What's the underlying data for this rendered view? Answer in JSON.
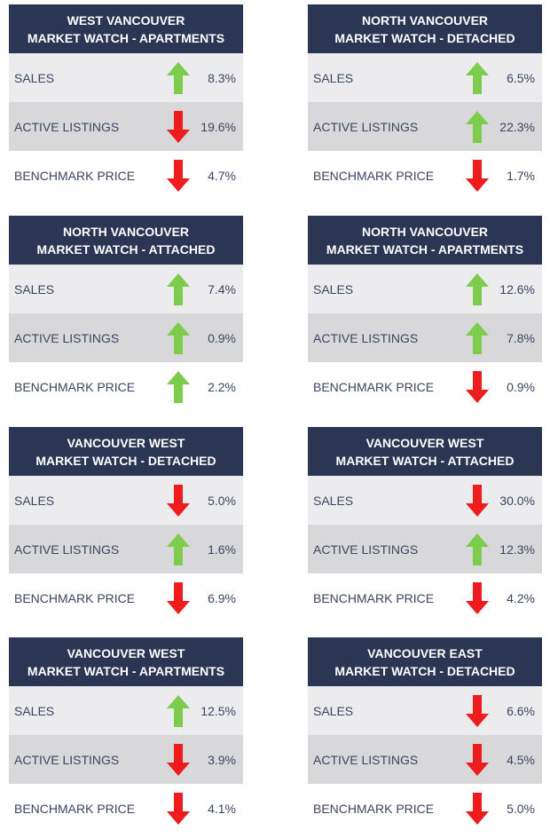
{
  "cards": [
    {
      "line1": "WEST VANCOUVER",
      "line2": "MARKET WATCH - APARTMENTS",
      "rows": [
        {
          "label": "SALES",
          "direction": "up",
          "value": "8.3%"
        },
        {
          "label": "ACTIVE LISTINGS",
          "direction": "down",
          "value": "19.6%"
        },
        {
          "label": "BENCHMARK PRICE",
          "direction": "down",
          "value": "4.7%"
        }
      ]
    },
    {
      "line1": "NORTH VANCOUVER",
      "line2": "MARKET WATCH - DETACHED",
      "rows": [
        {
          "label": "SALES",
          "direction": "up",
          "value": "6.5%"
        },
        {
          "label": "ACTIVE LISTINGS",
          "direction": "up",
          "value": "22.3%"
        },
        {
          "label": "BENCHMARK PRICE",
          "direction": "down",
          "value": "1.7%"
        }
      ]
    },
    {
      "line1": "NORTH VANCOUVER",
      "line2": "MARKET WATCH - ATTACHED",
      "rows": [
        {
          "label": "SALES",
          "direction": "up",
          "value": "7.4%"
        },
        {
          "label": "ACTIVE LISTINGS",
          "direction": "up",
          "value": "0.9%"
        },
        {
          "label": "BENCHMARK PRICE",
          "direction": "up",
          "value": "2.2%"
        }
      ]
    },
    {
      "line1": "NORTH VANCOUVER",
      "line2": "MARKET WATCH - APARTMENTS",
      "rows": [
        {
          "label": "SALES",
          "direction": "up",
          "value": "12.6%"
        },
        {
          "label": "ACTIVE LISTINGS",
          "direction": "up",
          "value": "7.8%"
        },
        {
          "label": "BENCHMARK PRICE",
          "direction": "down",
          "value": "0.9%"
        }
      ]
    },
    {
      "line1": "VANCOUVER WEST",
      "line2": "MARKET WATCH - DETACHED",
      "rows": [
        {
          "label": "SALES",
          "direction": "down",
          "value": "5.0%"
        },
        {
          "label": "ACTIVE LISTINGS",
          "direction": "up",
          "value": "1.6%"
        },
        {
          "label": "BENCHMARK PRICE",
          "direction": "down",
          "value": "6.9%"
        }
      ]
    },
    {
      "line1": "VANCOUVER WEST",
      "line2": "MARKET WATCH - ATTACHED",
      "rows": [
        {
          "label": "SALES",
          "direction": "down",
          "value": "30.0%"
        },
        {
          "label": "ACTIVE LISTINGS",
          "direction": "up",
          "value": "12.3%"
        },
        {
          "label": "BENCHMARK PRICE",
          "direction": "down",
          "value": "4.2%"
        }
      ]
    },
    {
      "line1": "VANCOUVER WEST",
      "line2": "MARKET WATCH - APARTMENTS",
      "rows": [
        {
          "label": "SALES",
          "direction": "up",
          "value": "12.5%"
        },
        {
          "label": "ACTIVE LISTINGS",
          "direction": "down",
          "value": "3.9%"
        },
        {
          "label": "BENCHMARK PRICE",
          "direction": "down",
          "value": "4.1%"
        }
      ]
    },
    {
      "line1": "VANCOUVER EAST",
      "line2": "MARKET WATCH - DETACHED",
      "rows": [
        {
          "label": "SALES",
          "direction": "down",
          "value": "6.6%"
        },
        {
          "label": "ACTIVE LISTINGS",
          "direction": "down",
          "value": "4.5%"
        },
        {
          "label": "BENCHMARK PRICE",
          "direction": "down",
          "value": "5.0%"
        }
      ]
    }
  ],
  "colors": {
    "header": "#2a3654",
    "up": "#7dcc4e",
    "down": "#ee1c1c",
    "text": "#3c4660"
  }
}
